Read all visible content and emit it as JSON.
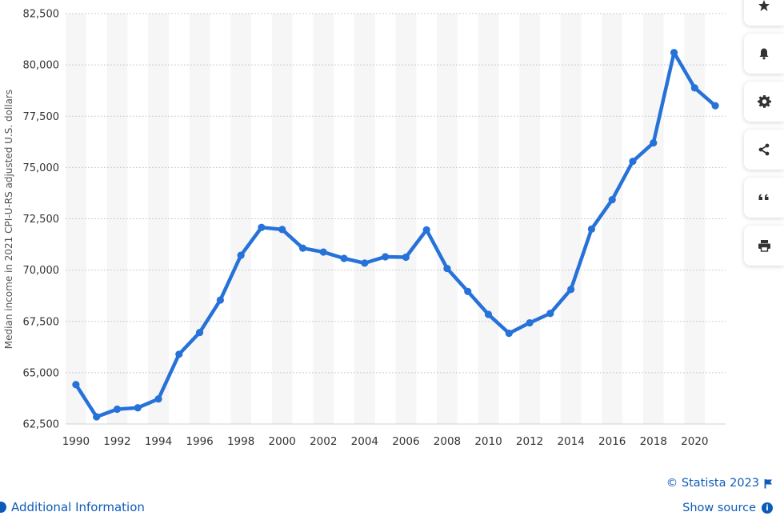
{
  "chart_data": {
    "type": "line",
    "title": "",
    "xlabel": "",
    "ylabel": "Median income in 2021 CPI-U-RS adjusted U.S. dollars",
    "x": [
      1990,
      1991,
      1992,
      1993,
      1994,
      1995,
      1996,
      1997,
      1998,
      1999,
      2000,
      2001,
      2002,
      2003,
      2004,
      2005,
      2006,
      2007,
      2008,
      2009,
      2010,
      2011,
      2012,
      2013,
      2014,
      2015,
      2016,
      2017,
      2018,
      2019,
      2020,
      2021
    ],
    "series": [
      {
        "values": [
          64420,
          62850,
          63220,
          63290,
          63720,
          65900,
          66960,
          68540,
          70720,
          72080,
          71980,
          71070,
          70880,
          70570,
          70340,
          70650,
          70630,
          71960,
          70080,
          68960,
          67840,
          66920,
          67430,
          67890,
          69060,
          72000,
          73430,
          75300,
          76200,
          80600,
          78880,
          78010
        ]
      }
    ],
    "x_ticks": [
      "1990",
      "1992",
      "1994",
      "1996",
      "1998",
      "2000",
      "2002",
      "2004",
      "2006",
      "2008",
      "2010",
      "2012",
      "2014",
      "2016",
      "2018",
      "2020"
    ],
    "y_ticks": [
      "62,500",
      "65,000",
      "67,500",
      "70,000",
      "72,500",
      "75,000",
      "77,500",
      "80,000",
      "82,500"
    ],
    "ylim": [
      62500,
      82500
    ],
    "xlim": [
      1989.5,
      2021.5
    ],
    "grid": true,
    "line_color": "#2672d9"
  },
  "footer": {
    "credit": "© Statista 2023",
    "show_source": "Show source",
    "additional_info": "Additional Information"
  },
  "toolbar": {
    "buttons": [
      {
        "name": "star-icon"
      },
      {
        "name": "bell-icon"
      },
      {
        "name": "gear-icon"
      },
      {
        "name": "share-icon"
      },
      {
        "name": "quote-icon"
      },
      {
        "name": "print-icon"
      }
    ]
  }
}
